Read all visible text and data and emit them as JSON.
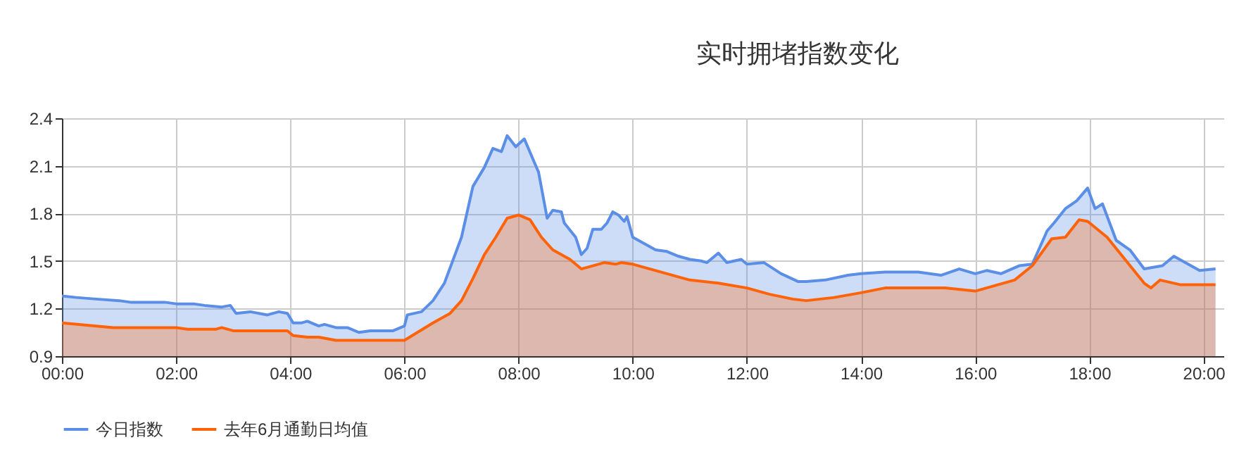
{
  "chart_data": {
    "type": "area",
    "title": "实时拥堵指数变化",
    "legend": "bottom",
    "grid": true,
    "xlim": [
      0,
      20.35
    ],
    "ylim": [
      0.9,
      2.4
    ],
    "yticks": [
      0.9,
      1.2,
      1.5,
      1.8,
      2.1,
      2.4
    ],
    "xticks": [
      {
        "value": 0,
        "label": "00:00"
      },
      {
        "value": 2,
        "label": "02:00"
      },
      {
        "value": 4,
        "label": "04:00"
      },
      {
        "value": 6,
        "label": "06:00"
      },
      {
        "value": 8,
        "label": "08:00"
      },
      {
        "value": 10,
        "label": "10:00"
      },
      {
        "value": 12,
        "label": "12:00"
      },
      {
        "value": 14,
        "label": "14:00"
      },
      {
        "value": 16,
        "label": "16:00"
      },
      {
        "value": 18,
        "label": "18:00"
      },
      {
        "value": 20,
        "label": "20:00"
      }
    ],
    "series": [
      {
        "name": "今日指数",
        "color": "#5b8ee6",
        "x": [
          0,
          0.25,
          0.6,
          1.0,
          1.2,
          1.5,
          1.8,
          2.0,
          2.3,
          2.5,
          2.8,
          2.95,
          3.05,
          3.3,
          3.6,
          3.8,
          3.95,
          4.05,
          4.2,
          4.3,
          4.5,
          4.6,
          4.8,
          5.0,
          5.2,
          5.4,
          5.8,
          6.0,
          6.05,
          6.3,
          6.5,
          6.7,
          7.0,
          7.2,
          7.4,
          7.55,
          7.7,
          7.8,
          7.95,
          8.1,
          8.35,
          8.5,
          8.6,
          8.75,
          8.8,
          9.0,
          9.1,
          9.2,
          9.3,
          9.45,
          9.55,
          9.65,
          9.75,
          9.85,
          9.9,
          10.0,
          10.2,
          10.4,
          10.6,
          10.8,
          11.0,
          11.2,
          11.3,
          11.5,
          11.65,
          11.9,
          12.0,
          12.3,
          12.6,
          12.9,
          13.04,
          13.37,
          13.77,
          14.0,
          14.42,
          15.0,
          15.4,
          15.72,
          16.0,
          16.2,
          16.45,
          16.77,
          17.0,
          17.26,
          17.38,
          17.58,
          17.78,
          17.97,
          18.1,
          18.23,
          18.47,
          18.71,
          18.96,
          19.28,
          19.48,
          19.68,
          19.93,
          20.21
        ],
        "values": [
          1.28,
          1.27,
          1.26,
          1.25,
          1.24,
          1.24,
          1.24,
          1.23,
          1.23,
          1.22,
          1.21,
          1.22,
          1.17,
          1.18,
          1.16,
          1.18,
          1.17,
          1.11,
          1.11,
          1.12,
          1.09,
          1.1,
          1.08,
          1.08,
          1.05,
          1.06,
          1.06,
          1.09,
          1.16,
          1.18,
          1.25,
          1.36,
          1.65,
          1.97,
          2.09,
          2.21,
          2.19,
          2.29,
          2.22,
          2.27,
          2.06,
          1.77,
          1.82,
          1.81,
          1.74,
          1.65,
          1.54,
          1.58,
          1.7,
          1.7,
          1.74,
          1.81,
          1.79,
          1.75,
          1.78,
          1.65,
          1.61,
          1.57,
          1.56,
          1.53,
          1.51,
          1.5,
          1.49,
          1.55,
          1.49,
          1.51,
          1.48,
          1.49,
          1.42,
          1.37,
          1.37,
          1.38,
          1.41,
          1.42,
          1.43,
          1.43,
          1.41,
          1.45,
          1.42,
          1.44,
          1.42,
          1.47,
          1.48,
          1.69,
          1.74,
          1.83,
          1.88,
          1.96,
          1.83,
          1.86,
          1.63,
          1.57,
          1.45,
          1.47,
          1.53,
          1.49,
          1.44,
          1.45
        ]
      },
      {
        "name": "去年6月通勤日均值",
        "color": "#ff6207",
        "x": [
          0,
          0.3,
          0.6,
          0.9,
          1.7,
          2.0,
          2.2,
          2.7,
          2.8,
          3.0,
          3.95,
          4.05,
          4.3,
          4.5,
          4.8,
          6.0,
          6.5,
          6.8,
          7.0,
          7.2,
          7.4,
          7.6,
          7.8,
          8.0,
          8.2,
          8.4,
          8.6,
          8.9,
          9.1,
          9.3,
          9.5,
          9.7,
          9.8,
          10.0,
          10.5,
          11.0,
          11.5,
          12.0,
          12.4,
          12.8,
          13.04,
          13.53,
          14.0,
          14.42,
          15.47,
          16.0,
          16.69,
          17.0,
          17.34,
          17.58,
          17.82,
          17.97,
          18.31,
          18.96,
          19.08,
          19.24,
          19.6,
          19.93,
          20.21
        ],
        "values": [
          1.11,
          1.1,
          1.09,
          1.08,
          1.08,
          1.08,
          1.07,
          1.07,
          1.08,
          1.06,
          1.06,
          1.03,
          1.02,
          1.02,
          1.0,
          1.0,
          1.11,
          1.17,
          1.25,
          1.39,
          1.54,
          1.65,
          1.77,
          1.79,
          1.76,
          1.65,
          1.57,
          1.51,
          1.45,
          1.47,
          1.49,
          1.48,
          1.49,
          1.48,
          1.43,
          1.38,
          1.36,
          1.33,
          1.29,
          1.26,
          1.25,
          1.27,
          1.3,
          1.33,
          1.33,
          1.31,
          1.38,
          1.47,
          1.64,
          1.65,
          1.76,
          1.75,
          1.65,
          1.36,
          1.33,
          1.38,
          1.35,
          1.35,
          1.35
        ]
      }
    ]
  }
}
